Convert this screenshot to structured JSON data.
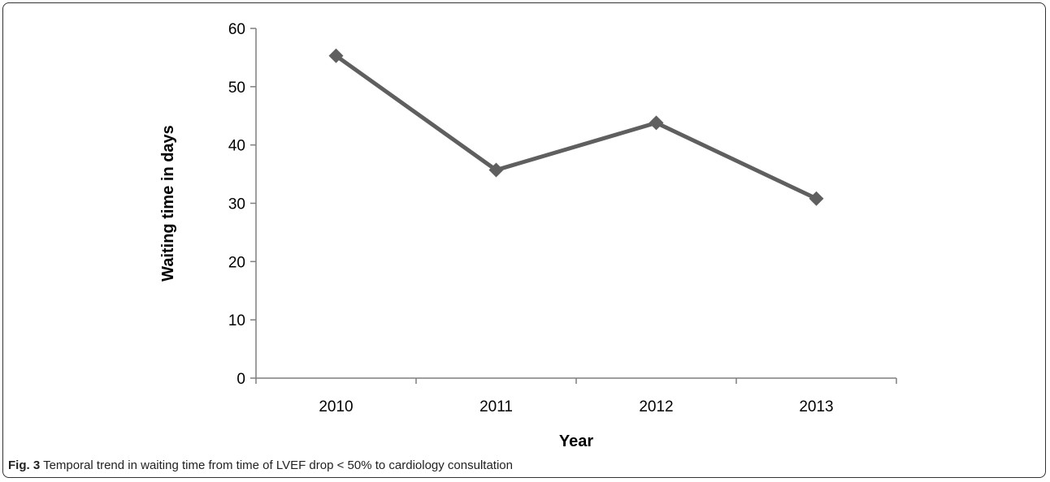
{
  "chart_data": {
    "type": "line",
    "categories": [
      "2010",
      "2011",
      "2012",
      "2013"
    ],
    "series": [
      {
        "values": [
          55.3,
          35.7,
          43.8,
          30.8
        ]
      }
    ],
    "xlabel": "Year",
    "ylabel": "Waiting time in days",
    "ylim": [
      0,
      60
    ],
    "yticks": [
      "0",
      "10",
      "20",
      "30",
      "40",
      "50",
      "60"
    ],
    "grid": false,
    "legend": "none",
    "marker": "diamond",
    "line_color": "#5f5f5f"
  },
  "caption": {
    "label": "Fig. 3",
    "text": " Temporal trend in waiting time from time of LVEF drop < 50% to cardiology consultation"
  }
}
